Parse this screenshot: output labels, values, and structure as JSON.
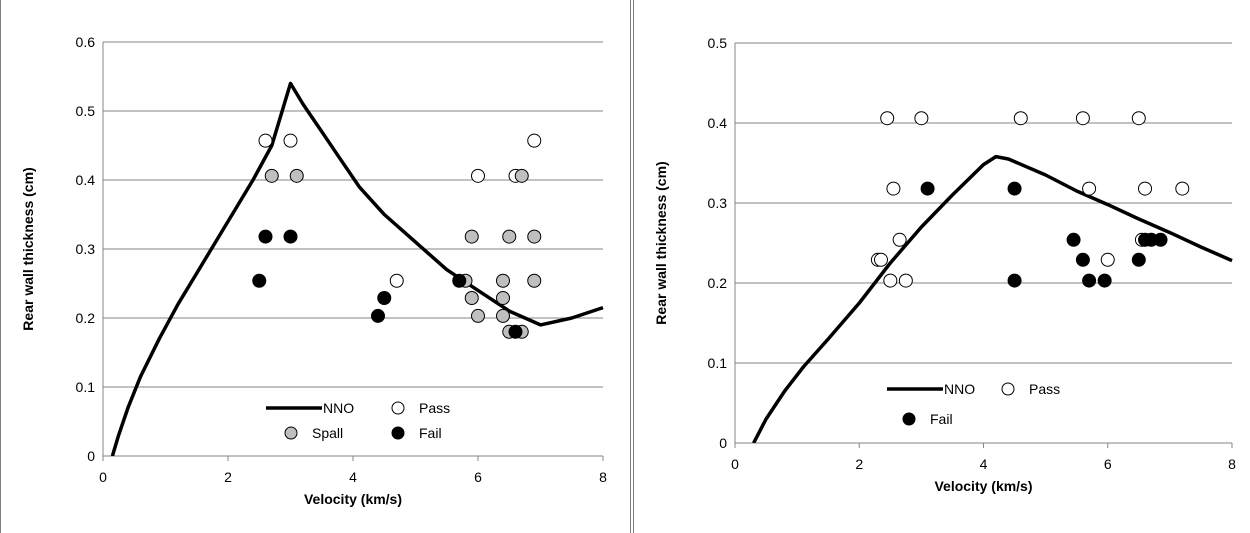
{
  "chart_data": [
    {
      "type": "scatter",
      "xlabel": "Velocity (km/s)",
      "ylabel": "Rear wall thickness (cm)",
      "xlim": [
        0,
        8
      ],
      "ylim": [
        0,
        0.6
      ],
      "xticks": [
        "0",
        "2",
        "4",
        "6",
        "8"
      ],
      "yticks": [
        "0",
        "0.1",
        "0.2",
        "0.3",
        "0.4",
        "0.5",
        "0.6"
      ],
      "grid": "horizontal",
      "legend": "bottom-center",
      "series": [
        {
          "name": "NNO",
          "kind": "line",
          "color": "#000000",
          "points": [
            [
              0.15,
              0
            ],
            [
              0.25,
              0.03
            ],
            [
              0.4,
              0.07
            ],
            [
              0.6,
              0.115
            ],
            [
              0.9,
              0.17
            ],
            [
              1.2,
              0.22
            ],
            [
              1.5,
              0.265
            ],
            [
              1.8,
              0.31
            ],
            [
              2.1,
              0.355
            ],
            [
              2.4,
              0.4
            ],
            [
              2.7,
              0.45
            ],
            [
              3.0,
              0.54
            ],
            [
              3.2,
              0.51
            ],
            [
              3.5,
              0.47
            ],
            [
              3.8,
              0.43
            ],
            [
              4.1,
              0.39
            ],
            [
              4.5,
              0.35
            ],
            [
              5.0,
              0.31
            ],
            [
              5.5,
              0.27
            ],
            [
              6.0,
              0.24
            ],
            [
              6.5,
              0.21
            ],
            [
              7.0,
              0.19
            ],
            [
              7.5,
              0.2
            ],
            [
              8.0,
              0.215
            ]
          ]
        },
        {
          "name": "Pass",
          "kind": "marker",
          "fill": "#ffffff",
          "points": [
            [
              2.6,
              0.457
            ],
            [
              3.0,
              0.457
            ],
            [
              4.7,
              0.254
            ],
            [
              6.0,
              0.406
            ],
            [
              6.6,
              0.406
            ],
            [
              6.9,
              0.457
            ]
          ]
        },
        {
          "name": "Spall",
          "kind": "marker",
          "fill": "#bfbfbf",
          "points": [
            [
              2.7,
              0.406
            ],
            [
              3.1,
              0.406
            ],
            [
              5.8,
              0.254
            ],
            [
              5.9,
              0.318
            ],
            [
              5.9,
              0.229
            ],
            [
              6.0,
              0.203
            ],
            [
              6.4,
              0.254
            ],
            [
              6.4,
              0.229
            ],
            [
              6.4,
              0.203
            ],
            [
              6.5,
              0.318
            ],
            [
              6.5,
              0.18
            ],
            [
              6.7,
              0.406
            ],
            [
              6.7,
              0.18
            ],
            [
              6.9,
              0.318
            ],
            [
              6.9,
              0.254
            ]
          ]
        },
        {
          "name": "Fail",
          "kind": "marker",
          "fill": "#000000",
          "points": [
            [
              2.5,
              0.254
            ],
            [
              2.6,
              0.318
            ],
            [
              3.0,
              0.318
            ],
            [
              4.4,
              0.203
            ],
            [
              4.5,
              0.229
            ],
            [
              5.7,
              0.254
            ],
            [
              6.6,
              0.18
            ]
          ]
        }
      ],
      "legend_order": [
        "NNO",
        "Pass",
        "Spall",
        "Fail"
      ]
    },
    {
      "type": "scatter",
      "xlabel": "Velocity (km/s)",
      "ylabel": "Rear wall thickness (cm)",
      "xlim": [
        0,
        8
      ],
      "ylim": [
        0,
        0.5
      ],
      "xticks": [
        "0",
        "2",
        "4",
        "6",
        "8"
      ],
      "yticks": [
        "0",
        "0.1",
        "0.2",
        "0.3",
        "0.4",
        "0.5"
      ],
      "grid": "horizontal",
      "legend": "bottom-center",
      "series": [
        {
          "name": "NNO",
          "kind": "line",
          "color": "#000000",
          "points": [
            [
              0.3,
              0
            ],
            [
              0.5,
              0.03
            ],
            [
              0.8,
              0.065
            ],
            [
              1.1,
              0.095
            ],
            [
              1.5,
              0.13
            ],
            [
              2.0,
              0.175
            ],
            [
              2.5,
              0.225
            ],
            [
              3.0,
              0.27
            ],
            [
              3.5,
              0.31
            ],
            [
              4.0,
              0.348
            ],
            [
              4.2,
              0.358
            ],
            [
              4.4,
              0.355
            ],
            [
              5.0,
              0.335
            ],
            [
              5.5,
              0.315
            ],
            [
              6.0,
              0.298
            ],
            [
              6.5,
              0.28
            ],
            [
              7.0,
              0.263
            ],
            [
              7.5,
              0.245
            ],
            [
              8.0,
              0.228
            ]
          ]
        },
        {
          "name": "Pass",
          "kind": "marker",
          "fill": "#ffffff",
          "points": [
            [
              2.3,
              0.229
            ],
            [
              2.35,
              0.229
            ],
            [
              2.45,
              0.406
            ],
            [
              2.5,
              0.203
            ],
            [
              2.55,
              0.318
            ],
            [
              2.65,
              0.254
            ],
            [
              2.75,
              0.203
            ],
            [
              3.0,
              0.406
            ],
            [
              4.6,
              0.406
            ],
            [
              5.6,
              0.406
            ],
            [
              5.7,
              0.318
            ],
            [
              6.0,
              0.229
            ],
            [
              6.5,
              0.406
            ],
            [
              6.6,
              0.318
            ],
            [
              6.55,
              0.254
            ],
            [
              7.2,
              0.318
            ]
          ]
        },
        {
          "name": "Fail",
          "kind": "marker",
          "fill": "#000000",
          "points": [
            [
              3.1,
              0.318
            ],
            [
              4.5,
              0.318
            ],
            [
              4.5,
              0.203
            ],
            [
              5.45,
              0.254
            ],
            [
              5.6,
              0.229
            ],
            [
              5.7,
              0.203
            ],
            [
              5.95,
              0.203
            ],
            [
              6.5,
              0.229
            ],
            [
              6.6,
              0.254
            ],
            [
              6.7,
              0.254
            ],
            [
              6.85,
              0.254
            ]
          ]
        }
      ],
      "legend_order": [
        "NNO",
        "Pass",
        "Fail"
      ]
    }
  ]
}
